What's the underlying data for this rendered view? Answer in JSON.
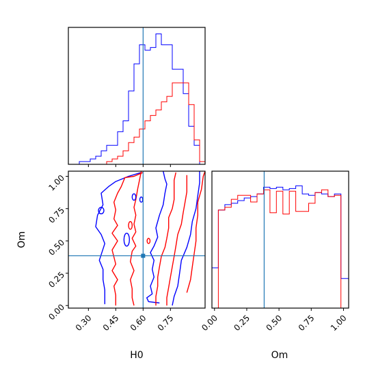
{
  "chart_data": {
    "type": "corner",
    "parameters": [
      "H0",
      "Om"
    ],
    "truth": {
      "H0": 0.6,
      "Om": 0.385
    },
    "colors": {
      "run_blue": "#0000ff",
      "run_red": "#ff0000",
      "truth": "#1f77b4"
    },
    "panels": [
      {
        "id": "H0-marginal",
        "type": "step-histogram",
        "xlim": [
          0.19,
          0.94
        ],
        "xticks": [
          0.3,
          0.45,
          0.6,
          0.75
        ],
        "series": [
          {
            "color": "blue",
            "edges": [
              0.19,
              0.22,
              0.25,
              0.28,
              0.31,
              0.34,
              0.37,
              0.4,
              0.43,
              0.46,
              0.49,
              0.52,
              0.55,
              0.58,
              0.61,
              0.64,
              0.67,
              0.7,
              0.73,
              0.76,
              0.79,
              0.82,
              0.85,
              0.88,
              0.91,
              0.94
            ],
            "counts": [
              0,
              0,
              1,
              1,
              2,
              3,
              5,
              7,
              7,
              12,
              16,
              27,
              37,
              44,
              42,
              43,
              48,
              44,
              44,
              35,
              35,
              26,
              14,
              7,
              0
            ]
          },
          {
            "color": "red",
            "edges": [
              0.19,
              0.22,
              0.25,
              0.28,
              0.31,
              0.34,
              0.37,
              0.4,
              0.43,
              0.46,
              0.49,
              0.52,
              0.55,
              0.58,
              0.61,
              0.64,
              0.67,
              0.7,
              0.73,
              0.76,
              0.79,
              0.82,
              0.85,
              0.88,
              0.91,
              0.94
            ],
            "counts": [
              0,
              0,
              0,
              0,
              0,
              0,
              0,
              1,
              2,
              3,
              5,
              8,
              10,
              13,
              16,
              18,
              20,
              23,
              25,
              30,
              30,
              30,
              22,
              9,
              1
            ]
          }
        ]
      },
      {
        "id": "H0-Om-contour",
        "type": "contour",
        "xlim": [
          0.19,
          0.94
        ],
        "ylim": [
          -0.02,
          1.04
        ],
        "xticks": [
          0.3,
          0.45,
          0.6,
          0.75
        ],
        "yticks": [
          0.0,
          0.25,
          0.5,
          0.75,
          1.0
        ],
        "xlabel": "H0",
        "ylabel": "Om",
        "contours": [
          {
            "color": "blue",
            "points": [
              [
                0.39,
                0.01
              ],
              [
                0.39,
                0.12
              ],
              [
                0.38,
                0.2
              ],
              [
                0.38,
                0.28
              ],
              [
                0.36,
                0.35
              ],
              [
                0.39,
                0.48
              ],
              [
                0.37,
                0.55
              ],
              [
                0.34,
                0.61
              ],
              [
                0.35,
                0.7
              ],
              [
                0.38,
                0.78
              ],
              [
                0.37,
                0.87
              ],
              [
                0.41,
                0.92
              ],
              [
                0.45,
                0.96
              ],
              [
                0.52,
                1.0
              ],
              [
                0.59,
                1.03
              ]
            ]
          },
          {
            "color": "red",
            "points": [
              [
                0.45,
                0.0
              ],
              [
                0.45,
                0.08
              ],
              [
                0.44,
                0.15
              ],
              [
                0.46,
                0.2
              ],
              [
                0.43,
                0.27
              ],
              [
                0.45,
                0.32
              ],
              [
                0.43,
                0.43
              ],
              [
                0.46,
                0.5
              ],
              [
                0.43,
                0.56
              ],
              [
                0.46,
                0.62
              ],
              [
                0.44,
                0.67
              ],
              [
                0.45,
                0.74
              ],
              [
                0.44,
                0.8
              ],
              [
                0.46,
                0.87
              ],
              [
                0.48,
                0.92
              ],
              [
                0.5,
                0.99
              ],
              [
                0.55,
                1.0
              ],
              [
                0.6,
                1.03
              ]
            ]
          },
          {
            "color": "red",
            "points": [
              [
                0.55,
                0.0
              ],
              [
                0.54,
                0.06
              ],
              [
                0.54,
                0.13
              ],
              [
                0.53,
                0.2
              ],
              [
                0.55,
                0.27
              ],
              [
                0.53,
                0.34
              ],
              [
                0.54,
                0.42
              ],
              [
                0.56,
                0.46
              ],
              [
                0.54,
                0.52
              ],
              [
                0.56,
                0.57
              ],
              [
                0.55,
                0.63
              ],
              [
                0.56,
                0.7
              ],
              [
                0.55,
                0.76
              ],
              [
                0.56,
                0.82
              ],
              [
                0.57,
                0.9
              ],
              [
                0.58,
                0.97
              ],
              [
                0.59,
                1.04
              ]
            ]
          },
          {
            "color": "blue",
            "points": [
              [
                0.69,
                0.02
              ],
              [
                0.63,
                0.03
              ],
              [
                0.62,
                0.06
              ],
              [
                0.65,
                0.09
              ],
              [
                0.64,
                0.15
              ],
              [
                0.66,
                0.22
              ],
              [
                0.65,
                0.28
              ],
              [
                0.66,
                0.35
              ],
              [
                0.64,
                0.41
              ],
              [
                0.66,
                0.46
              ],
              [
                0.68,
                0.53
              ],
              [
                0.67,
                0.6
              ],
              [
                0.69,
                0.7
              ],
              [
                0.71,
                0.78
              ],
              [
                0.72,
                0.87
              ],
              [
                0.73,
                0.94
              ],
              [
                0.72,
                0.98
              ],
              [
                0.71,
                1.04
              ]
            ]
          },
          {
            "color": "red",
            "points": [
              [
                0.67,
                0.0
              ],
              [
                0.67,
                0.07
              ],
              [
                0.68,
                0.15
              ],
              [
                0.68,
                0.22
              ],
              [
                0.69,
                0.3
              ],
              [
                0.7,
                0.38
              ],
              [
                0.72,
                0.45
              ],
              [
                0.73,
                0.52
              ],
              [
                0.74,
                0.6
              ],
              [
                0.74,
                0.68
              ],
              [
                0.76,
                0.75
              ],
              [
                0.77,
                0.82
              ],
              [
                0.77,
                0.89
              ],
              [
                0.77,
                0.97
              ],
              [
                0.78,
                1.03
              ]
            ]
          },
          {
            "color": "red",
            "points": [
              [
                0.73,
                0.0
              ],
              [
                0.73,
                0.06
              ],
              [
                0.74,
                0.14
              ],
              [
                0.75,
                0.22
              ],
              [
                0.76,
                0.3
              ],
              [
                0.77,
                0.38
              ],
              [
                0.78,
                0.46
              ],
              [
                0.79,
                0.55
              ],
              [
                0.81,
                0.63
              ],
              [
                0.82,
                0.72
              ],
              [
                0.83,
                0.8
              ],
              [
                0.84,
                0.88
              ],
              [
                0.84,
                0.95
              ],
              [
                0.84,
                1.01
              ]
            ]
          },
          {
            "color": "blue",
            "points": [
              [
                0.76,
                0.0
              ],
              [
                0.77,
                0.07
              ],
              [
                0.79,
                0.15
              ],
              [
                0.8,
                0.25
              ],
              [
                0.81,
                0.35
              ],
              [
                0.84,
                0.45
              ],
              [
                0.86,
                0.55
              ],
              [
                0.87,
                0.65
              ],
              [
                0.89,
                0.75
              ],
              [
                0.9,
                0.85
              ],
              [
                0.91,
                0.95
              ],
              [
                0.91,
                1.04
              ]
            ]
          },
          {
            "color": "red",
            "points": [
              [
                0.84,
                0.1
              ],
              [
                0.86,
                0.2
              ],
              [
                0.87,
                0.3
              ],
              [
                0.88,
                0.4
              ],
              [
                0.89,
                0.5
              ],
              [
                0.89,
                0.6
              ],
              [
                0.9,
                0.7
              ],
              [
                0.9,
                0.8
              ],
              [
                0.92,
                0.9
              ],
              [
                0.93,
                1.0
              ],
              [
                0.94,
                1.04
              ]
            ]
          }
        ],
        "small_loops": [
          {
            "color": "blue",
            "center": [
              0.37,
              0.735
            ],
            "rx": 0.015,
            "ry": 0.025
          },
          {
            "color": "blue",
            "center": [
              0.51,
              0.51
            ],
            "rx": 0.015,
            "ry": 0.05
          },
          {
            "color": "red",
            "center": [
              0.53,
              0.62
            ],
            "rx": 0.01,
            "ry": 0.03
          },
          {
            "color": "red",
            "center": [
              0.63,
              0.5
            ],
            "rx": 0.008,
            "ry": 0.02
          },
          {
            "color": "blue",
            "center": [
              0.59,
              0.82
            ],
            "rx": 0.008,
            "ry": 0.02
          },
          {
            "color": "blue",
            "center": [
              0.55,
              0.84
            ],
            "rx": 0.01,
            "ry": 0.025
          }
        ]
      },
      {
        "id": "Om-marginal",
        "type": "step-histogram",
        "xlim": [
          -0.02,
          1.04
        ],
        "xticks": [
          0.0,
          0.25,
          0.5,
          0.75,
          1.0
        ],
        "xlabel": "Om",
        "series": [
          {
            "color": "blue",
            "edges": [
              -0.02,
              0.03,
              0.08,
              0.13,
              0.18,
              0.23,
              0.28,
              0.33,
              0.38,
              0.43,
              0.48,
              0.53,
              0.58,
              0.63,
              0.68,
              0.73,
              0.78,
              0.83,
              0.88,
              0.93,
              0.98,
              1.04
            ],
            "counts": [
              30,
              73,
              77,
              78,
              80,
              82,
              83,
              85,
              90,
              89,
              90,
              88,
              89,
              91,
              85,
              84,
              86,
              85,
              83,
              85,
              22
            ]
          },
          {
            "color": "red",
            "edges": [
              -0.02,
              0.03,
              0.08,
              0.13,
              0.18,
              0.23,
              0.28,
              0.33,
              0.38,
              0.43,
              0.48,
              0.53,
              0.58,
              0.63,
              0.68,
              0.73,
              0.78,
              0.83,
              0.88,
              0.93,
              0.98,
              1.04
            ],
            "counts": [
              0,
              73,
              75,
              81,
              84,
              84,
              79,
              85,
              88,
              71,
              87,
              70,
              87,
              72,
              72,
              78,
              86,
              88,
              83,
              84,
              0
            ]
          }
        ]
      }
    ]
  }
}
